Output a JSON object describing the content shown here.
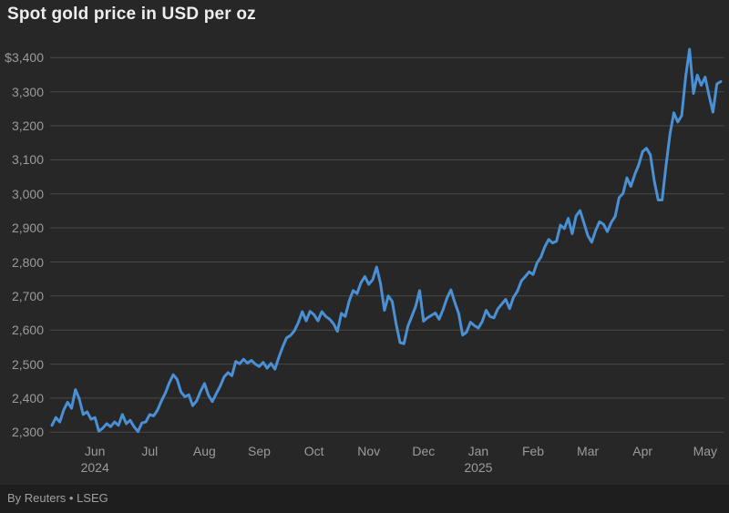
{
  "header": {
    "title": "Spot gold price in USD per oz"
  },
  "footer": {
    "credit": "By Reuters • LSEG"
  },
  "colors": {
    "background": "#272727",
    "footer_background": "#1e1e1e",
    "line": "#4a90d5",
    "gridline": "#484848",
    "axis_text": "#9b9b9b",
    "title_text": "#ededed"
  },
  "chart_data": {
    "type": "line",
    "title": "Spot gold price in USD per oz",
    "xlabel": "",
    "ylabel": "USD per oz",
    "grid": true,
    "legend": false,
    "ylim": [
      2300,
      3400
    ],
    "y_ticks": [
      {
        "value": 3400,
        "label": "$3,400"
      },
      {
        "value": 3300,
        "label": "3,300"
      },
      {
        "value": 3200,
        "label": "3,200"
      },
      {
        "value": 3100,
        "label": "3,100"
      },
      {
        "value": 3000,
        "label": "3,000"
      },
      {
        "value": 2900,
        "label": "2,900"
      },
      {
        "value": 2800,
        "label": "2,800"
      },
      {
        "value": 2700,
        "label": "2,700"
      },
      {
        "value": 2600,
        "label": "2,600"
      },
      {
        "value": 2500,
        "label": "2,500"
      },
      {
        "value": 2400,
        "label": "2,400"
      },
      {
        "value": 2300,
        "label": "2,300"
      }
    ],
    "x_ticks": [
      {
        "label": "Jun",
        "year": "2024",
        "index": 11
      },
      {
        "label": "Jul",
        "index": 25
      },
      {
        "label": "Aug",
        "index": 39
      },
      {
        "label": "Sep",
        "index": 53
      },
      {
        "label": "Oct",
        "index": 67
      },
      {
        "label": "Nov",
        "index": 81
      },
      {
        "label": "Dec",
        "index": 95
      },
      {
        "label": "Jan",
        "year": "2025",
        "index": 109
      },
      {
        "label": "Feb",
        "index": 123
      },
      {
        "label": "Mar",
        "index": 137
      },
      {
        "label": "Apr",
        "index": 151
      },
      {
        "label": "May",
        "index": 167
      }
    ],
    "values": [
      2320,
      2343,
      2330,
      2365,
      2388,
      2370,
      2425,
      2398,
      2352,
      2360,
      2338,
      2343,
      2303,
      2312,
      2325,
      2316,
      2330,
      2320,
      2352,
      2325,
      2335,
      2316,
      2302,
      2327,
      2330,
      2352,
      2348,
      2365,
      2392,
      2415,
      2445,
      2469,
      2455,
      2418,
      2404,
      2410,
      2378,
      2392,
      2420,
      2443,
      2409,
      2390,
      2413,
      2435,
      2462,
      2475,
      2466,
      2508,
      2501,
      2514,
      2503,
      2511,
      2500,
      2493,
      2505,
      2488,
      2502,
      2485,
      2520,
      2551,
      2577,
      2584,
      2598,
      2622,
      2654,
      2627,
      2655,
      2645,
      2627,
      2654,
      2640,
      2632,
      2618,
      2596,
      2649,
      2640,
      2685,
      2716,
      2707,
      2739,
      2757,
      2734,
      2748,
      2785,
      2736,
      2658,
      2700,
      2684,
      2618,
      2563,
      2560,
      2611,
      2640,
      2670,
      2716,
      2626,
      2636,
      2643,
      2650,
      2632,
      2660,
      2694,
      2718,
      2681,
      2648,
      2585,
      2594,
      2623,
      2613,
      2606,
      2625,
      2658,
      2640,
      2636,
      2662,
      2676,
      2690,
      2663,
      2696,
      2714,
      2744,
      2757,
      2771,
      2763,
      2797,
      2814,
      2844,
      2866,
      2856,
      2861,
      2908,
      2898,
      2928,
      2883,
      2935,
      2951,
      2915,
      2877,
      2858,
      2892,
      2918,
      2911,
      2889,
      2916,
      2934,
      2989,
      3001,
      3047,
      3022,
      3057,
      3085,
      3124,
      3134,
      3115,
      3038,
      2982,
      2982,
      3083,
      3175,
      3238,
      3211,
      3230,
      3343,
      3425,
      3295,
      3349,
      3319,
      3343,
      3289,
      3240,
      3323,
      3330
    ]
  }
}
